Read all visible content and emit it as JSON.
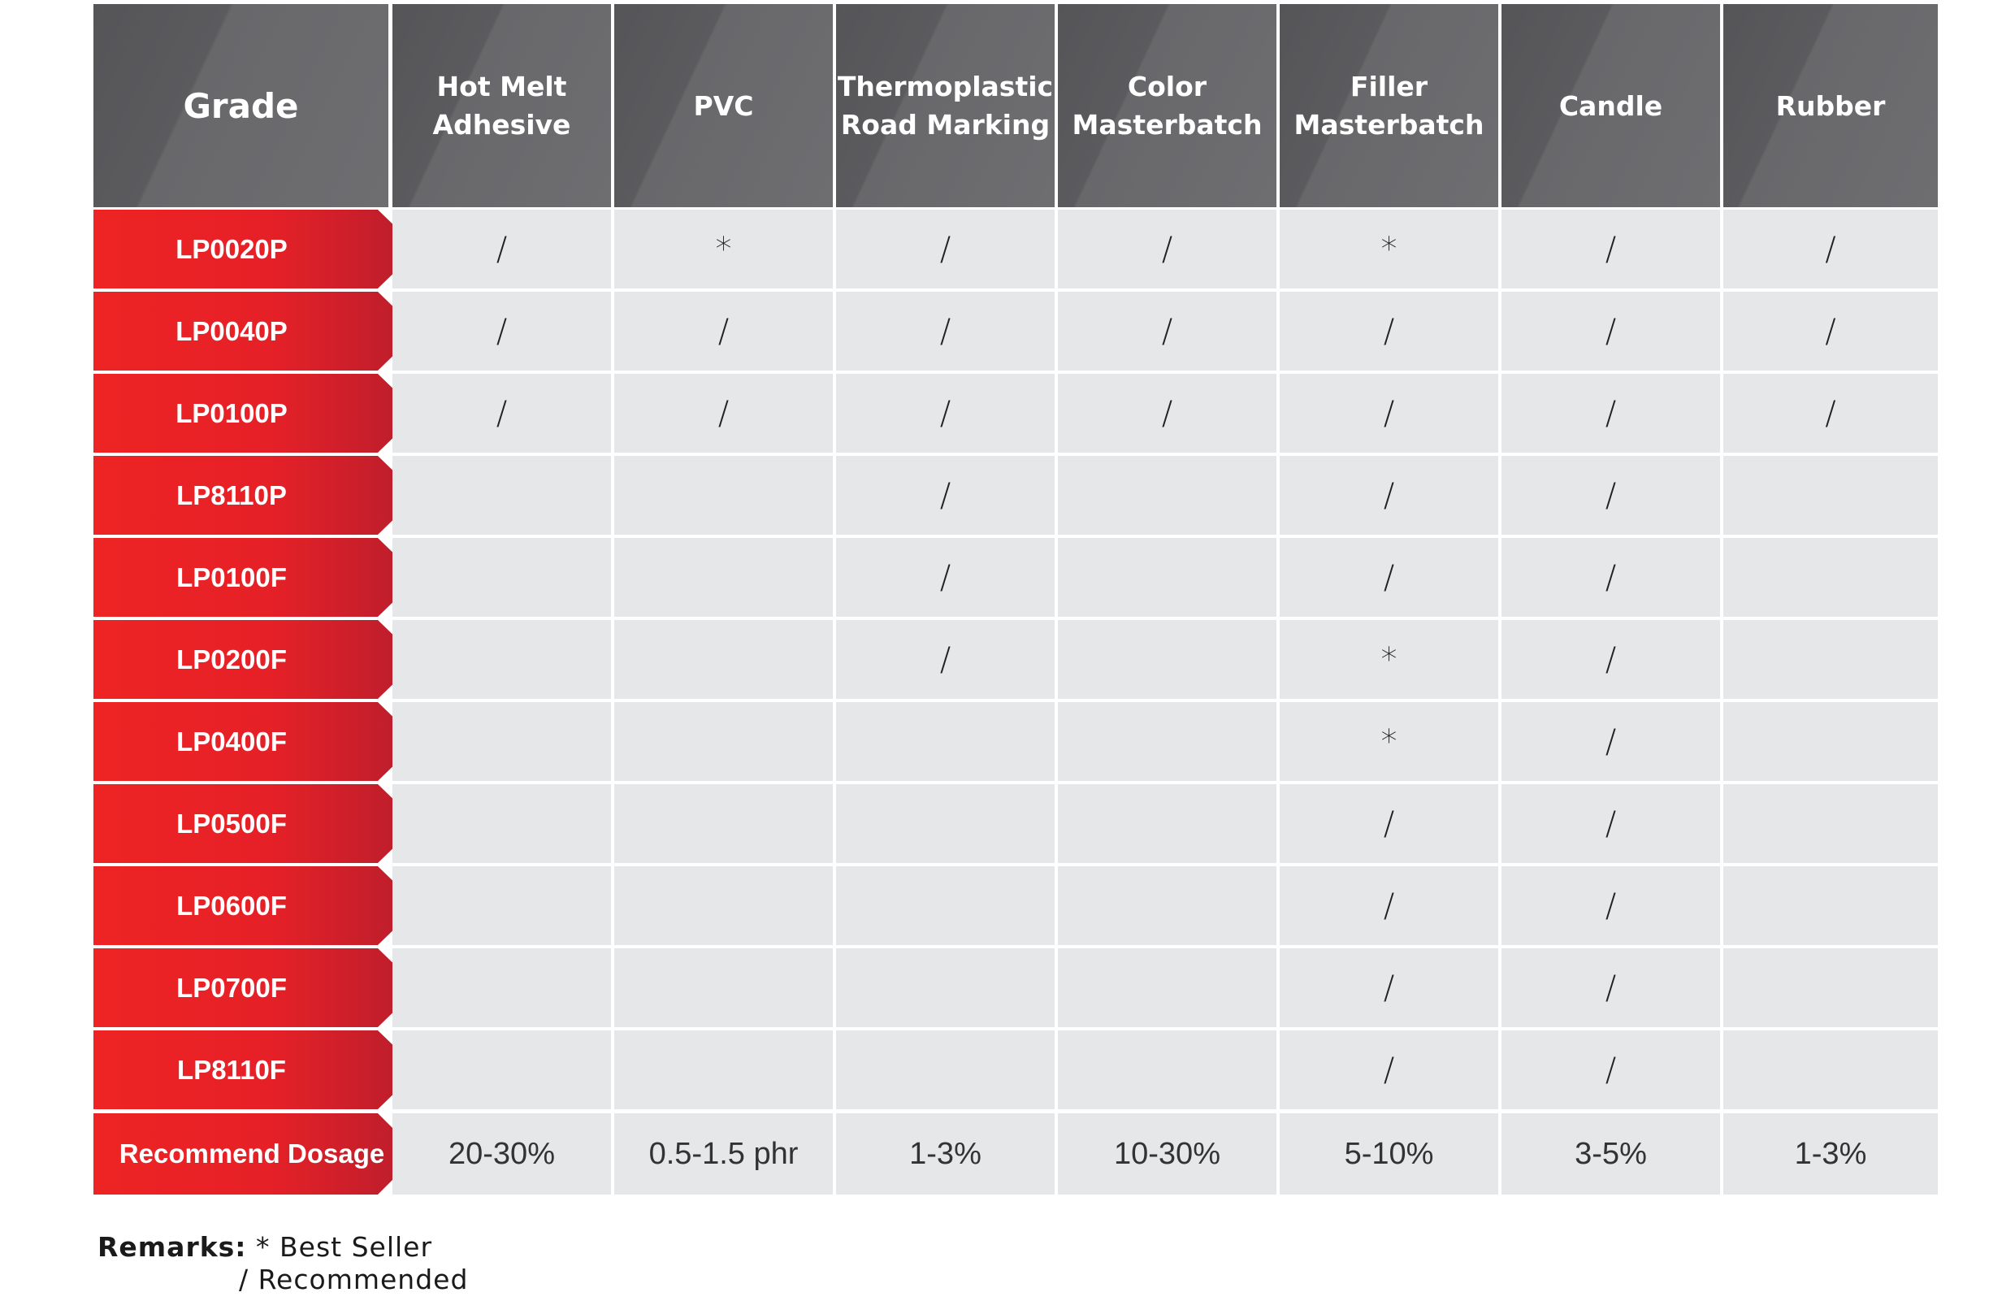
{
  "table": {
    "header_grade": "Grade",
    "columns": [
      [
        "Hot Melt",
        "Adhesive"
      ],
      [
        "PVC"
      ],
      [
        "Thermoplastic",
        "Road Marking"
      ],
      [
        "Color",
        "Masterbatch"
      ],
      [
        "Filler",
        "Masterbatch"
      ],
      [
        "Candle"
      ],
      [
        "Rubber"
      ]
    ],
    "rows": [
      {
        "grade": "LP0020P",
        "cells": [
          "/",
          "*",
          "/",
          "/",
          "*",
          "/",
          "/"
        ]
      },
      {
        "grade": "LP0040P",
        "cells": [
          "/",
          "/",
          "/",
          "/",
          "/",
          "/",
          "/"
        ]
      },
      {
        "grade": "LP0100P",
        "cells": [
          "/",
          "/",
          "/",
          "/",
          "/",
          "/",
          "/"
        ]
      },
      {
        "grade": "LP8110P",
        "cells": [
          "",
          "",
          "/",
          "",
          "/",
          "/",
          ""
        ]
      },
      {
        "grade": "LP0100F",
        "cells": [
          "",
          "",
          "/",
          "",
          "/",
          "/",
          ""
        ]
      },
      {
        "grade": "LP0200F",
        "cells": [
          "",
          "",
          "/",
          "",
          "*",
          "/",
          ""
        ]
      },
      {
        "grade": "LP0400F",
        "cells": [
          "",
          "",
          "",
          "",
          "*",
          "/",
          ""
        ]
      },
      {
        "grade": "LP0500F",
        "cells": [
          "",
          "",
          "",
          "",
          "/",
          "/",
          ""
        ]
      },
      {
        "grade": "LP0600F",
        "cells": [
          "",
          "",
          "",
          "",
          "/",
          "/",
          ""
        ]
      },
      {
        "grade": "LP0700F",
        "cells": [
          "",
          "",
          "",
          "",
          "/",
          "/",
          ""
        ]
      },
      {
        "grade": "LP8110F",
        "cells": [
          "",
          "",
          "",
          "",
          "/",
          "/",
          ""
        ]
      }
    ],
    "dosage_label": "Recommend Dosage",
    "dosage": [
      "20-30%",
      "0.5-1.5 phr",
      "1-3%",
      "10-30%",
      "5-10%",
      "3-5%",
      "1-3%"
    ]
  },
  "remarks": {
    "label": "Remarks:",
    "best_seller": "* Best Seller",
    "recommended": "/ Recommended"
  }
}
